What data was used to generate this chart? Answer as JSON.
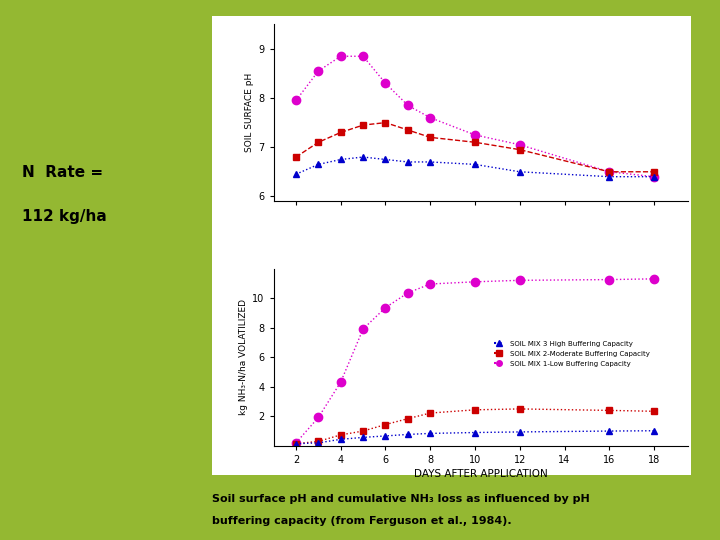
{
  "days": [
    2,
    3,
    4,
    5,
    6,
    7,
    8,
    10,
    12,
    16,
    18
  ],
  "ph_high": [
    6.45,
    6.65,
    6.75,
    6.8,
    6.75,
    6.7,
    6.7,
    6.65,
    6.5,
    6.4,
    6.4
  ],
  "ph_moderate": [
    6.8,
    7.1,
    7.3,
    7.45,
    7.5,
    7.35,
    7.2,
    7.1,
    6.95,
    6.5,
    6.5
  ],
  "ph_low": [
    7.95,
    8.55,
    8.85,
    8.85,
    8.3,
    7.85,
    7.6,
    7.25,
    7.05,
    6.5,
    6.4
  ],
  "nh3_high": [
    0.12,
    0.18,
    0.42,
    0.55,
    0.65,
    0.75,
    0.82,
    0.88,
    0.92,
    0.98,
    1.0
  ],
  "nh3_moderate": [
    0.12,
    0.28,
    0.72,
    0.98,
    1.42,
    1.82,
    2.2,
    2.42,
    2.48,
    2.38,
    2.32
  ],
  "nh3_low": [
    0.18,
    1.9,
    4.3,
    7.9,
    9.35,
    10.35,
    10.95,
    11.1,
    11.2,
    11.25,
    11.3
  ],
  "color_high": "#0000cc",
  "color_moderate": "#cc0000",
  "color_low": "#dd00cc",
  "ylabel_top": "SOIL SURFACE pH",
  "ylabel_bottom": "kg NH₃-N/ha VOLATILIZED",
  "xlabel": "DAYS AFTER APPLICATION",
  "caption_line1": "Soil surface pH and cumulative NH₃ loss as influenced by pH",
  "caption_line2": "buffering capacity (from Ferguson et al., 1984).",
  "n_rate_line1": "N  Rate =",
  "n_rate_line2": "112 kg/ha",
  "legend_high": "SOIL MIX 3 High Buffering Capacity",
  "legend_moderate": "SOIL MIX 2-Moderate Buffering Capacity",
  "legend_low": "SOIL MIX 1-Low Buffering Capacity",
  "ph_ylim": [
    5.9,
    9.5
  ],
  "ph_yticks": [
    6,
    7,
    8,
    9
  ],
  "nh3_ylim": [
    0,
    12
  ],
  "nh3_yticks": [
    2,
    4,
    6,
    8,
    10
  ],
  "xticks": [
    2,
    4,
    6,
    8,
    10,
    12,
    14,
    16,
    18
  ],
  "xlim": [
    1.0,
    19.5
  ],
  "bg_color": "#ffffff",
  "outer_bg": "#94b832"
}
